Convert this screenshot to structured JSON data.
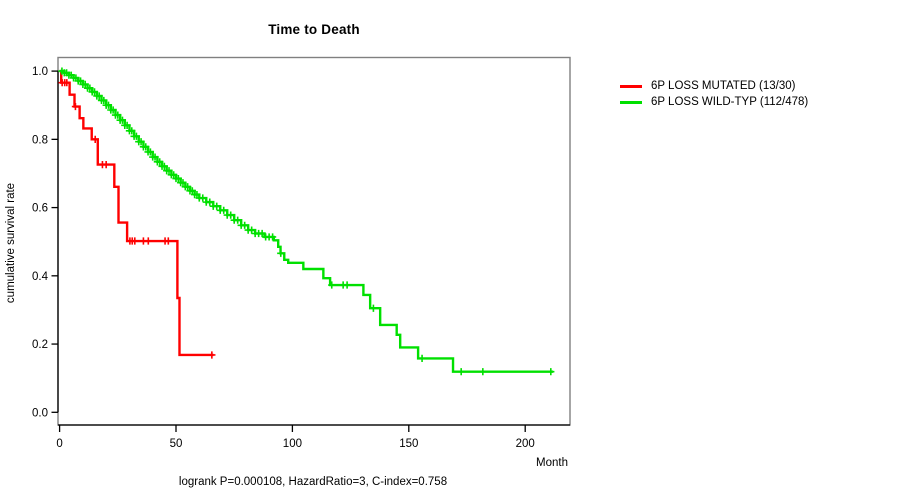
{
  "title": "Time to Death",
  "footer": "logrank P=0.000108, HazardRatio=3, C-index=0.758",
  "x_axis": {
    "label": "Month",
    "tick_values": [
      0,
      50,
      100,
      150,
      200
    ],
    "tick_labels": [
      "0",
      "50",
      "100",
      "150",
      "200"
    ]
  },
  "y_axis": {
    "label": "cumulative survival rate",
    "tick_values": [
      0.0,
      0.2,
      0.4,
      0.6,
      0.8,
      1.0
    ],
    "tick_labels": [
      "0.0",
      "0.2",
      "0.4",
      "0.6",
      "0.8",
      "1.0"
    ]
  },
  "legend": [
    {
      "label": "6P LOSS MUTATED (13/30)",
      "color": "#ff0000"
    },
    {
      "label": "6P LOSS WILD-TYP (112/478)",
      "color": "#00e000"
    }
  ],
  "colors": {
    "mutated": "#ff0000",
    "wildtype": "#00e000",
    "frame": "#808080",
    "axis": "#000000"
  },
  "chart_data": {
    "type": "line",
    "subtype": "kaplan-meier-step",
    "title": "Time to Death",
    "xlabel": "Month",
    "ylabel": "cumulative survival rate",
    "xlim": [
      0,
      220
    ],
    "ylim": [
      0,
      1
    ],
    "grid": false,
    "legend_position": "right-outside",
    "series": [
      {
        "name": "6P LOSS MUTATED (13/30)",
        "color": "#ff0000",
        "events_total": "13/30",
        "points": [
          [
            0,
            1.0
          ],
          [
            0.7,
            0.966
          ],
          [
            4.3,
            0.931
          ],
          [
            6.4,
            0.896
          ],
          [
            8.6,
            0.862
          ],
          [
            10.2,
            0.832
          ],
          [
            13.8,
            0.8
          ],
          [
            16.4,
            0.726
          ],
          [
            23.5,
            0.661
          ],
          [
            25.3,
            0.556
          ],
          [
            29.0,
            0.502
          ],
          [
            50.6,
            0.335
          ],
          [
            51.5,
            0.168
          ]
        ],
        "end_month": 66.1,
        "censor_months": [
          1.1,
          2.2,
          3.1,
          6.8,
          15.3,
          18.4,
          20.0,
          30.2,
          31.2,
          32.3,
          36.0,
          38.1,
          45.3,
          46.7,
          65.4
        ]
      },
      {
        "name": "6P LOSS WILD-TYP (112/478)",
        "color": "#00e000",
        "events_total": "112/478",
        "points": [
          [
            0,
            1.0
          ],
          [
            2,
            0.995
          ],
          [
            4,
            0.988
          ],
          [
            6,
            0.98
          ],
          [
            8,
            0.971
          ],
          [
            10,
            0.961
          ],
          [
            12,
            0.95
          ],
          [
            14,
            0.939
          ],
          [
            16,
            0.927
          ],
          [
            18,
            0.914
          ],
          [
            20,
            0.9
          ],
          [
            22,
            0.886
          ],
          [
            24,
            0.871
          ],
          [
            26,
            0.856
          ],
          [
            28,
            0.841
          ],
          [
            30,
            0.825
          ],
          [
            32,
            0.809
          ],
          [
            34,
            0.793
          ],
          [
            36,
            0.778
          ],
          [
            38,
            0.763
          ],
          [
            40,
            0.748
          ],
          [
            42,
            0.734
          ],
          [
            44,
            0.721
          ],
          [
            46,
            0.708
          ],
          [
            48,
            0.696
          ],
          [
            50,
            0.685
          ],
          [
            52,
            0.673
          ],
          [
            54,
            0.661
          ],
          [
            56,
            0.649
          ],
          [
            58,
            0.638
          ],
          [
            60,
            0.628
          ],
          [
            63,
            0.616
          ],
          [
            66,
            0.604
          ],
          [
            69,
            0.592
          ],
          [
            72,
            0.578
          ],
          [
            75,
            0.563
          ],
          [
            78,
            0.548
          ],
          [
            81,
            0.534
          ],
          [
            84,
            0.524
          ],
          [
            88,
            0.514
          ],
          [
            92,
            0.504
          ],
          [
            93.9,
            0.485
          ],
          [
            94.9,
            0.466
          ],
          [
            96.5,
            0.447
          ],
          [
            98.2,
            0.438
          ],
          [
            104.7,
            0.42
          ],
          [
            113.3,
            0.393
          ],
          [
            116.2,
            0.373
          ],
          [
            130.5,
            0.344
          ],
          [
            133.4,
            0.305
          ],
          [
            137.7,
            0.256
          ],
          [
            144.8,
            0.227
          ],
          [
            146.3,
            0.19
          ],
          [
            154.0,
            0.158
          ],
          [
            169.0,
            0.119
          ]
        ],
        "end_month": 212,
        "censor_months": [
          1,
          2,
          3,
          4,
          5,
          6,
          7,
          8,
          9,
          10,
          11,
          12,
          13,
          14,
          15,
          16,
          17,
          18,
          19,
          20,
          21,
          22,
          23,
          24,
          25,
          26,
          27,
          28,
          29,
          30,
          31,
          32,
          33,
          34,
          35,
          36,
          37,
          38,
          39,
          40,
          41,
          42,
          43,
          44,
          45,
          46,
          47,
          48,
          49,
          50,
          51,
          52,
          53,
          54,
          55,
          56,
          57,
          58,
          59,
          60,
          61.5,
          63,
          64.5,
          66,
          67.5,
          69,
          70.5,
          72,
          73.5,
          75,
          76.5,
          78,
          79.5,
          81,
          82.5,
          84,
          85.5,
          87,
          88.5,
          90,
          91.5,
          95,
          116.9,
          121.8,
          123.5,
          134.8,
          155.7,
          172.5,
          181.8,
          211
        ]
      }
    ]
  }
}
